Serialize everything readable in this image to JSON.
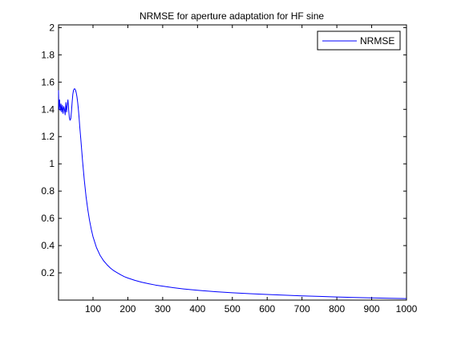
{
  "chart_data": {
    "type": "line",
    "title": "NRMSE for aperture adaptation for HF sine",
    "xlabel": "",
    "ylabel": "",
    "xlim": [
      1,
      1000
    ],
    "ylim": [
      0,
      2.02
    ],
    "xticks": [
      100,
      200,
      300,
      400,
      500,
      600,
      700,
      800,
      900,
      1000
    ],
    "yticks": [
      0.2,
      0.4,
      0.6,
      0.8,
      1,
      1.2,
      1.4,
      1.6,
      1.8,
      2
    ],
    "grid": false,
    "legend": {
      "position": "top-right",
      "entries": [
        "NRMSE"
      ]
    },
    "series": [
      {
        "name": "NRMSE",
        "color": "#0000ff",
        "x": [
          1,
          2,
          4,
          6,
          8,
          10,
          12,
          14,
          16,
          18,
          20,
          22,
          24,
          26,
          28,
          30,
          32,
          34,
          36,
          38,
          40,
          42,
          44,
          46,
          48,
          50,
          52,
          54,
          56,
          58,
          60,
          62,
          65,
          70,
          75,
          80,
          85,
          90,
          95,
          100,
          110,
          120,
          130,
          140,
          150,
          160,
          170,
          180,
          190,
          200,
          220,
          240,
          260,
          280,
          300,
          330,
          360,
          400,
          450,
          500,
          550,
          600,
          650,
          700,
          750,
          800,
          850,
          900,
          950,
          1000
        ],
        "y": [
          1.54,
          1.4,
          1.47,
          1.39,
          1.44,
          1.38,
          1.43,
          1.37,
          1.42,
          1.4,
          1.36,
          1.45,
          1.38,
          1.43,
          1.47,
          1.4,
          1.34,
          1.32,
          1.33,
          1.38,
          1.45,
          1.51,
          1.54,
          1.55,
          1.55,
          1.54,
          1.52,
          1.49,
          1.45,
          1.4,
          1.34,
          1.27,
          1.18,
          1.02,
          0.88,
          0.76,
          0.665,
          0.585,
          0.52,
          0.465,
          0.385,
          0.33,
          0.29,
          0.26,
          0.235,
          0.215,
          0.2,
          0.185,
          0.172,
          0.162,
          0.145,
          0.131,
          0.12,
          0.11,
          0.102,
          0.091,
          0.082,
          0.072,
          0.062,
          0.054,
          0.047,
          0.041,
          0.036,
          0.031,
          0.027,
          0.023,
          0.019,
          0.016,
          0.013,
          0.011
        ]
      }
    ]
  }
}
